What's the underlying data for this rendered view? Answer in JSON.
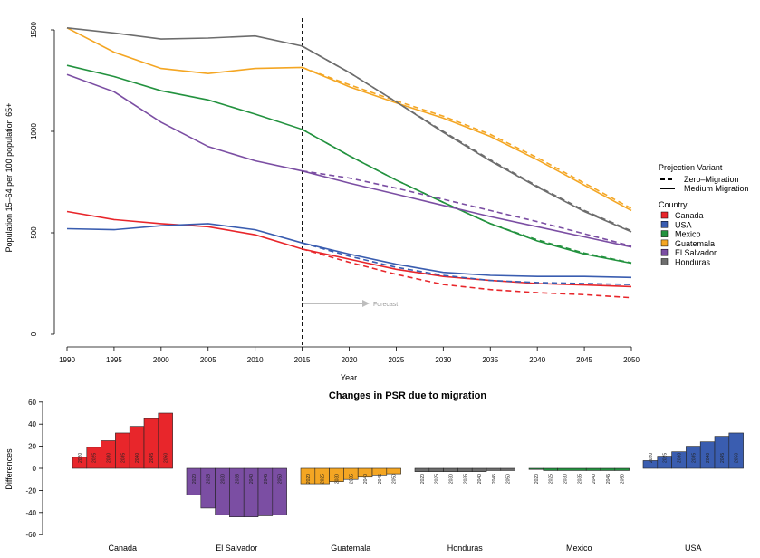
{
  "colors": {
    "Canada": "#e8262b",
    "USA": "#3a5db0",
    "Mexico": "#23923f",
    "Guatemala": "#f4a623",
    "El Salvador": "#7b4ea3",
    "Honduras": "#6d6d6d",
    "vline": "#000000",
    "forecast_arrow": "#bdbdbd"
  },
  "chart_data": [
    {
      "type": "line",
      "title": "",
      "xlabel": "Year",
      "ylabel": "Population 15–64 per 100 population 65+",
      "x_ticks": [
        1990,
        1995,
        2000,
        2005,
        2010,
        2015,
        2020,
        2025,
        2030,
        2035,
        2040,
        2045,
        2050
      ],
      "y_ticks": [
        0,
        500,
        1000,
        1500
      ],
      "xlim": [
        1990,
        2050
      ],
      "ylim": [
        0,
        1530
      ],
      "vline_x": 2015,
      "forecast_label": "Forecast",
      "legend_variant_title": "Projection Variant",
      "legend_variants": [
        "Zero–Migration",
        "Medium Migration"
      ],
      "legend_country_title": "Country",
      "legend_countries": [
        "Canada",
        "USA",
        "Mexico",
        "Guatemala",
        "El Salvador",
        "Honduras"
      ],
      "x": [
        1990,
        1995,
        2000,
        2005,
        2010,
        2015,
        2020,
        2025,
        2030,
        2035,
        2040,
        2045,
        2050
      ],
      "series": [
        {
          "name": "Canada",
          "variant": "Medium Migration",
          "values": [
            605,
            565,
            545,
            530,
            490,
            420,
            370,
            320,
            285,
            265,
            250,
            243,
            235
          ]
        },
        {
          "name": "Canada",
          "variant": "Zero–Migration",
          "x": [
            2015,
            2020,
            2025,
            2030,
            2035,
            2040,
            2045,
            2050
          ],
          "values": [
            420,
            355,
            295,
            245,
            220,
            205,
            195,
            180
          ]
        },
        {
          "name": "USA",
          "variant": "Medium Migration",
          "values": [
            520,
            515,
            535,
            545,
            515,
            450,
            395,
            345,
            305,
            290,
            285,
            285,
            280
          ]
        },
        {
          "name": "USA",
          "variant": "Zero–Migration",
          "x": [
            2015,
            2020,
            2025,
            2030,
            2035,
            2040,
            2045,
            2050
          ],
          "values": [
            450,
            385,
            330,
            290,
            265,
            255,
            250,
            245
          ]
        },
        {
          "name": "Mexico",
          "variant": "Medium Migration",
          "values": [
            1325,
            1270,
            1200,
            1155,
            1085,
            1010,
            880,
            760,
            650,
            545,
            460,
            395,
            350
          ]
        },
        {
          "name": "Mexico",
          "variant": "Zero–Migration",
          "x": [
            2015,
            2020,
            2025,
            2030,
            2035,
            2040,
            2045,
            2050
          ],
          "values": [
            1010,
            880,
            760,
            650,
            545,
            465,
            400,
            352
          ]
        },
        {
          "name": "Guatemala",
          "variant": "Medium Migration",
          "values": [
            1510,
            1390,
            1310,
            1285,
            1310,
            1315,
            1220,
            1140,
            1065,
            975,
            860,
            735,
            610
          ]
        },
        {
          "name": "Guatemala",
          "variant": "Zero–Migration",
          "x": [
            2015,
            2020,
            2025,
            2030,
            2035,
            2040,
            2045,
            2050
          ],
          "values": [
            1315,
            1230,
            1150,
            1075,
            985,
            870,
            745,
            620
          ]
        },
        {
          "name": "El Salvador",
          "variant": "Medium Migration",
          "values": [
            1280,
            1195,
            1045,
            925,
            855,
            805,
            745,
            690,
            635,
            580,
            530,
            480,
            430
          ]
        },
        {
          "name": "El Salvador",
          "variant": "Zero–Migration",
          "x": [
            2015,
            2020,
            2025,
            2030,
            2035,
            2040,
            2045,
            2050
          ],
          "values": [
            805,
            770,
            720,
            665,
            610,
            555,
            495,
            435
          ]
        },
        {
          "name": "Honduras",
          "variant": "Medium Migration",
          "values": [
            1510,
            1485,
            1455,
            1460,
            1470,
            1420,
            1290,
            1145,
            995,
            855,
            725,
            605,
            505
          ]
        },
        {
          "name": "Honduras",
          "variant": "Zero–Migration",
          "x": [
            2015,
            2020,
            2025,
            2030,
            2035,
            2040,
            2045,
            2050
          ],
          "values": [
            1420,
            1290,
            1145,
            1000,
            860,
            730,
            610,
            510
          ]
        }
      ]
    },
    {
      "type": "bar",
      "title": "Changes in PSR due to migration",
      "ylabel": "Differences",
      "y_ticks": [
        -60,
        -40,
        -20,
        0,
        20,
        40,
        60
      ],
      "ylim": [
        -60,
        60
      ],
      "years": [
        "2020",
        "2025",
        "2030",
        "2035",
        "2040",
        "2045",
        "2050"
      ],
      "groups": [
        {
          "name": "Canada",
          "values": [
            10,
            19,
            25,
            32,
            38,
            45,
            50
          ]
        },
        {
          "name": "El Salvador",
          "values": [
            -24,
            -36,
            -42,
            -44,
            -44,
            -43,
            -42
          ]
        },
        {
          "name": "Guatemala",
          "values": [
            -14,
            -14,
            -12,
            -10,
            -8,
            -6,
            -5
          ]
        },
        {
          "name": "Honduras",
          "values": [
            -3,
            -3,
            -3,
            -3,
            -3,
            -2,
            -2
          ]
        },
        {
          "name": "Mexico",
          "values": [
            -1,
            -2,
            -2,
            -2,
            -2,
            -2,
            -2
          ]
        },
        {
          "name": "USA",
          "values": [
            7,
            11,
            15,
            20,
            24,
            29,
            32
          ]
        }
      ]
    }
  ]
}
